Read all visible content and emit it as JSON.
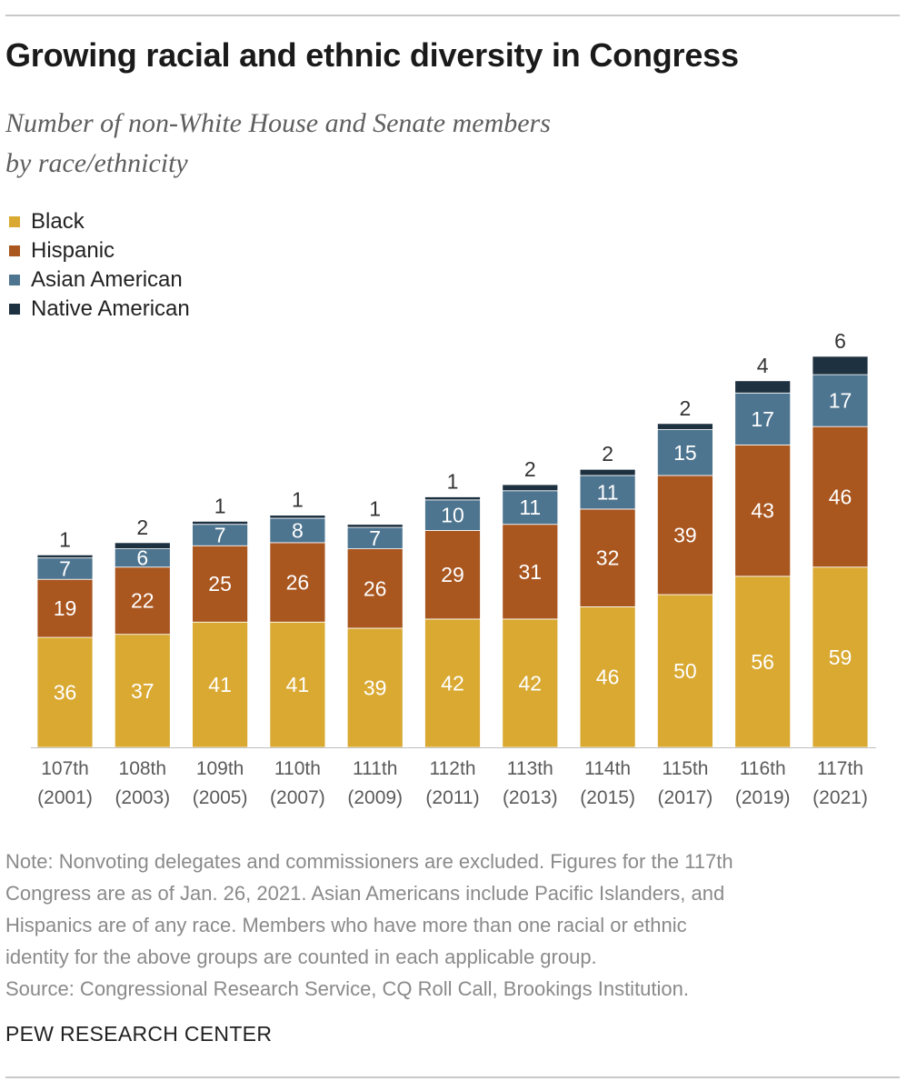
{
  "title": "Growing racial and ethnic diversity in Congress",
  "subtitle_lines": [
    "Number of non-White House and Senate members",
    "by race/ethnicity"
  ],
  "note_lines": [
    "Note: Nonvoting delegates and commissioners are excluded. Figures for the 117th",
    "Congress are as of Jan. 26, 2021. Asian Americans include Pacific Islanders, and",
    "Hispanics are of any race. Members who have more than one racial or ethnic",
    "identity for the above groups are counted in each applicable group."
  ],
  "source": "Source: Congressional Research Service, CQ Roll Call, Brookings Institution.",
  "brand": "PEW RESEARCH CENTER",
  "colors": {
    "black": "#d9a932",
    "hispanic": "#a9561f",
    "asian": "#4e7590",
    "native": "#1e3140"
  },
  "chart_data": {
    "type": "bar",
    "stacked": true,
    "categories": [
      "107th",
      "108th",
      "109th",
      "110th",
      "111th",
      "112th",
      "113th",
      "114th",
      "115th",
      "116th",
      "117th"
    ],
    "category_years": [
      "(2001)",
      "(2003)",
      "(2005)",
      "(2007)",
      "(2009)",
      "(2011)",
      "(2013)",
      "(2015)",
      "(2017)",
      "(2019)",
      "(2021)"
    ],
    "series": [
      {
        "name": "Black",
        "color": "#d9a932",
        "values": [
          36,
          37,
          41,
          41,
          39,
          42,
          42,
          46,
          50,
          56,
          59
        ]
      },
      {
        "name": "Hispanic",
        "color": "#a9561f",
        "values": [
          19,
          22,
          25,
          26,
          26,
          29,
          31,
          32,
          39,
          43,
          46
        ]
      },
      {
        "name": "Asian American",
        "color": "#4e7590",
        "values": [
          7,
          6,
          7,
          8,
          7,
          10,
          11,
          11,
          15,
          17,
          17
        ]
      },
      {
        "name": "Native American",
        "color": "#1e3140",
        "values": [
          1,
          2,
          1,
          1,
          1,
          1,
          2,
          2,
          2,
          4,
          6
        ]
      }
    ],
    "legend_position": "top-left",
    "grid": false
  }
}
